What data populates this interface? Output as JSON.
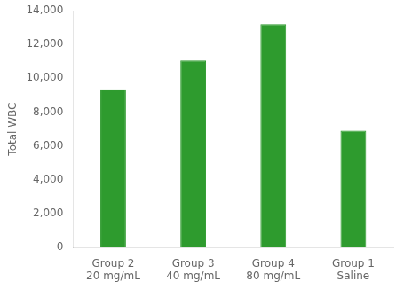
{
  "chart_data": {
    "type": "bar",
    "categories": [
      "Group 2\n20 mg/mL",
      "Group 3\n40 mg/mL",
      "Group 4\n80 mg/mL",
      "Group 1\nSaline"
    ],
    "values": [
      9350,
      11050,
      13200,
      6900
    ],
    "color": "#2e9b2e",
    "ylabel": "Total WBC",
    "ylim": [
      0,
      14000
    ],
    "yticks": [
      0,
      {
        "value": 2000,
        "label": "2,000"
      },
      {
        "value": 4000,
        "label": "4,000"
      },
      {
        "value": 6000,
        "label": "6,000"
      },
      {
        "value": 8000,
        "label": "8,000"
      },
      {
        "value": 10000,
        "label": "10,000"
      },
      {
        "value": 12000,
        "label": "12,000"
      },
      {
        "value": 14000,
        "label": "14,000"
      }
    ],
    "grid": false
  }
}
